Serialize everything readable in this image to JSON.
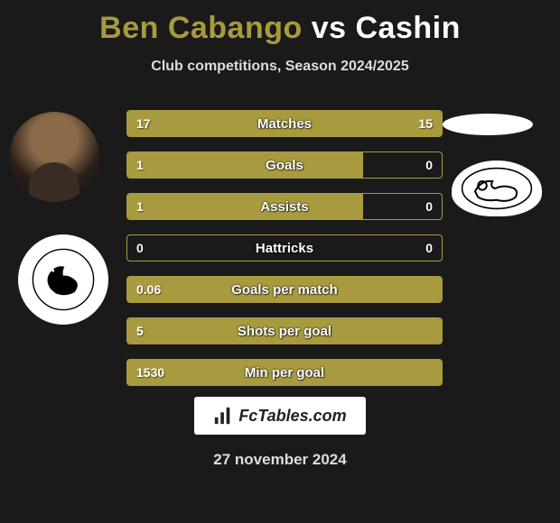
{
  "title": {
    "player1": "Ben Cabango",
    "vs": "vs",
    "player2": "Cashin"
  },
  "subtitle": "Club competitions, Season 2024/2025",
  "colors": {
    "accent": "#a89a3e",
    "bg": "#1a1a1a",
    "text": "#ffffff"
  },
  "bars": [
    {
      "label": "Matches",
      "left": "17",
      "right": "15",
      "left_pct": 53,
      "right_pct": 47
    },
    {
      "label": "Goals",
      "left": "1",
      "right": "0",
      "left_pct": 75,
      "right_pct": 0
    },
    {
      "label": "Assists",
      "left": "1",
      "right": "0",
      "left_pct": 75,
      "right_pct": 0
    },
    {
      "label": "Hattricks",
      "left": "0",
      "right": "0",
      "left_pct": 0,
      "right_pct": 0
    },
    {
      "label": "Goals per match",
      "left": "0.06",
      "right": "",
      "left_pct": 100,
      "right_pct": 0
    },
    {
      "label": "Shots per goal",
      "left": "5",
      "right": "",
      "left_pct": 100,
      "right_pct": 0
    },
    {
      "label": "Min per goal",
      "left": "1530",
      "right": "",
      "left_pct": 100,
      "right_pct": 0
    }
  ],
  "footer_brand": "FcTables.com",
  "date": "27 november 2024",
  "icons": {
    "player1_club": "swansea",
    "player2_club": "derby"
  }
}
